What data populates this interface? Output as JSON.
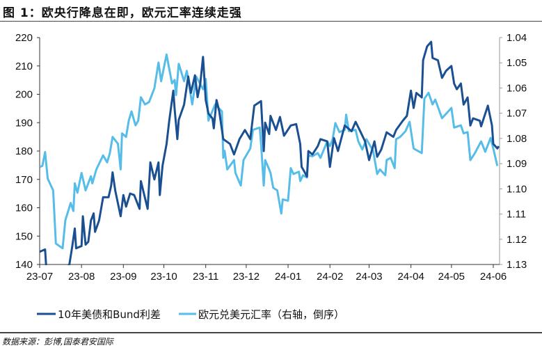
{
  "title": "图 1：欧央行降息在即，欧元汇率连续走强",
  "source": "数据来源：彭博,国泰君安国际",
  "colors": {
    "spread": "#1a4f92",
    "eurusd": "#56bde9"
  },
  "chart_data": {
    "type": "line",
    "title": "",
    "grid": false,
    "legend_position": "bottom",
    "x_ticks": [
      "23-07",
      "23-08",
      "23-09",
      "23-10",
      "23-11",
      "23-12",
      "24-01",
      "24-02",
      "24-03",
      "24-04",
      "24-05",
      "24-06"
    ],
    "y_left": {
      "ticks": [
        "220",
        "210",
        "200",
        "190",
        "180",
        "170",
        "160",
        "150",
        "140"
      ],
      "range": [
        140,
        220
      ]
    },
    "y_right": {
      "ticks": [
        "1.04",
        "1.05",
        "1.06",
        "1.07",
        "1.08",
        "1.09",
        "1.10",
        "1.11",
        "1.12",
        "1.13"
      ],
      "range": [
        1.04,
        1.13
      ],
      "inverted": true
    },
    "series": [
      {
        "name": "10年美债和Bund利差",
        "axis": "left",
        "points": [
          [
            "2023-07-01",
            144.5
          ],
          [
            "2023-07-05",
            145.3
          ],
          [
            "2023-07-06",
            138
          ],
          [
            "2023-07-15",
            135
          ],
          [
            "2023-07-23",
            140
          ],
          [
            "2023-07-25",
            146
          ],
          [
            "2023-07-27",
            152.7
          ],
          [
            "2023-07-28",
            145.7
          ],
          [
            "2023-08-01",
            146.5
          ],
          [
            "2023-08-02",
            157
          ],
          [
            "2023-08-04",
            147
          ],
          [
            "2023-08-06",
            148
          ],
          [
            "2023-08-08",
            155.5
          ],
          [
            "2023-08-10",
            158
          ],
          [
            "2023-08-11",
            151.5
          ],
          [
            "2023-08-14",
            155.5
          ],
          [
            "2023-08-17",
            163.7
          ],
          [
            "2023-08-21",
            163.7
          ],
          [
            "2023-08-23",
            167.8
          ],
          [
            "2023-08-24",
            172.5
          ],
          [
            "2023-08-26",
            166
          ],
          [
            "2023-08-30",
            157
          ],
          [
            "2023-09-01",
            164.5
          ],
          [
            "2023-09-03",
            160.4
          ],
          [
            "2023-09-06",
            165
          ],
          [
            "2023-09-09",
            164.5
          ],
          [
            "2023-09-13",
            159.6
          ],
          [
            "2023-09-14",
            169.4
          ],
          [
            "2023-09-19",
            159.6
          ],
          [
            "2023-09-21",
            176
          ],
          [
            "2023-09-24",
            170
          ],
          [
            "2023-09-27",
            176
          ],
          [
            "2023-09-28",
            164.5
          ],
          [
            "2023-09-30",
            174.8
          ],
          [
            "2023-10-03",
            182.5
          ],
          [
            "2023-10-05",
            190.8
          ],
          [
            "2023-10-08",
            201.3
          ],
          [
            "2023-10-09",
            194.8
          ],
          [
            "2023-10-11",
            184.2
          ],
          [
            "2023-10-12",
            191
          ],
          [
            "2023-10-16",
            196.4
          ],
          [
            "2023-10-19",
            206.3
          ],
          [
            "2023-10-21",
            200.5
          ],
          [
            "2023-10-24",
            206.7
          ],
          [
            "2023-10-26",
            199
          ],
          [
            "2023-10-28",
            203.8
          ],
          [
            "2023-10-30",
            213.2
          ],
          [
            "2023-11-01",
            198
          ],
          [
            "2023-11-03",
            193.2
          ],
          [
            "2023-11-06",
            191.5
          ],
          [
            "2023-11-07",
            188
          ],
          [
            "2023-11-09",
            198
          ],
          [
            "2023-11-11",
            194
          ],
          [
            "2023-11-14",
            184.2
          ],
          [
            "2023-11-19",
            182.5
          ],
          [
            "2023-11-22",
            178.8
          ],
          [
            "2023-11-26",
            184.2
          ],
          [
            "2023-11-30",
            187.4
          ],
          [
            "2023-12-04",
            184.2
          ],
          [
            "2023-12-07",
            196
          ],
          [
            "2023-12-12",
            197.6
          ],
          [
            "2023-12-14",
            180
          ],
          [
            "2023-12-15",
            190
          ],
          [
            "2023-12-18",
            186
          ],
          [
            "2023-12-19",
            192.4
          ],
          [
            "2023-12-23",
            187.4
          ],
          [
            "2023-12-26",
            192
          ],
          [
            "2023-12-29",
            185.4
          ],
          [
            "2024-01-03",
            189
          ],
          [
            "2024-01-07",
            189.5
          ],
          [
            "2024-01-10",
            182.5
          ],
          [
            "2024-01-11",
            174.4
          ],
          [
            "2024-01-13",
            172.8
          ],
          [
            "2024-01-15",
            171
          ],
          [
            "2024-01-16",
            180
          ],
          [
            "2024-01-19",
            178.8
          ],
          [
            "2024-01-23",
            181.7
          ],
          [
            "2024-01-25",
            184.2
          ],
          [
            "2024-01-30",
            183.4
          ],
          [
            "2024-02-01",
            174.4
          ],
          [
            "2024-02-04",
            184.6
          ],
          [
            "2024-02-07",
            180
          ],
          [
            "2024-02-12",
            189
          ],
          [
            "2024-02-17",
            187
          ],
          [
            "2024-02-20",
            190.3
          ],
          [
            "2024-02-23",
            187.4
          ],
          [
            "2024-02-27",
            183.4
          ],
          [
            "2024-03-01",
            176.8
          ],
          [
            "2024-03-05",
            183.4
          ],
          [
            "2024-03-07",
            178
          ],
          [
            "2024-03-10",
            180.5
          ],
          [
            "2024-03-14",
            186.6
          ],
          [
            "2024-03-19",
            185
          ],
          [
            "2024-03-21",
            187.4
          ],
          [
            "2024-03-26",
            190.7
          ],
          [
            "2024-03-29",
            192.4
          ],
          [
            "2024-04-01",
            201.3
          ],
          [
            "2024-04-03",
            195.2
          ],
          [
            "2024-04-05",
            200.5
          ],
          [
            "2024-04-09",
            198.9
          ],
          [
            "2024-04-10",
            212
          ],
          [
            "2024-04-13",
            216.9
          ],
          [
            "2024-04-16",
            218.5
          ],
          [
            "2024-04-17",
            212.8
          ],
          [
            "2024-04-21",
            212
          ],
          [
            "2024-04-24",
            205.8
          ],
          [
            "2024-04-27",
            208.3
          ],
          [
            "2024-05-01",
            210
          ],
          [
            "2024-05-03",
            203.8
          ],
          [
            "2024-05-05",
            201.8
          ],
          [
            "2024-05-08",
            203.8
          ],
          [
            "2024-05-10",
            196.4
          ],
          [
            "2024-05-13",
            198.9
          ],
          [
            "2024-05-15",
            189
          ],
          [
            "2024-05-17",
            191.5
          ],
          [
            "2024-05-22",
            190.7
          ],
          [
            "2024-05-23",
            188.7
          ],
          [
            "2024-05-28",
            196
          ],
          [
            "2024-05-31",
            189
          ],
          [
            "2024-06-01",
            182.5
          ],
          [
            "2024-06-04",
            180.9
          ],
          [
            "2024-06-05",
            181.7
          ]
        ]
      },
      {
        "name": "欧元兑美元汇率（右轴，倒序）",
        "axis": "right",
        "points": [
          [
            "2023-07-01",
            1.0913
          ],
          [
            "2023-07-03",
            1.0909
          ],
          [
            "2023-07-05",
            1.0854
          ],
          [
            "2023-07-07",
            1.096
          ],
          [
            "2023-07-11",
            1.1006
          ],
          [
            "2023-07-13",
            1.1217
          ],
          [
            "2023-07-18",
            1.1236
          ],
          [
            "2023-07-20",
            1.1125
          ],
          [
            "2023-07-24",
            1.1056
          ],
          [
            "2023-07-26",
            1.1088
          ],
          [
            "2023-07-27",
            1.0978
          ],
          [
            "2023-07-29",
            1.1015
          ],
          [
            "2023-08-01",
            1.0937
          ],
          [
            "2023-08-04",
            1.1006
          ],
          [
            "2023-08-08",
            1.095
          ],
          [
            "2023-08-09",
            1.0978
          ],
          [
            "2023-08-12",
            1.0923
          ],
          [
            "2023-08-17",
            1.0867
          ],
          [
            "2023-08-20",
            1.0895
          ],
          [
            "2023-08-22",
            1.0858
          ],
          [
            "2023-08-24",
            1.0794
          ],
          [
            "2023-08-28",
            1.0821
          ],
          [
            "2023-08-30",
            1.0923
          ],
          [
            "2023-08-31",
            1.078
          ],
          [
            "2023-09-03",
            1.0794
          ],
          [
            "2023-09-05",
            1.0729
          ],
          [
            "2023-09-07",
            1.0693
          ],
          [
            "2023-09-10",
            1.0748
          ],
          [
            "2023-09-12",
            1.0729
          ],
          [
            "2023-09-14",
            1.0637
          ],
          [
            "2023-09-17",
            1.0665
          ],
          [
            "2023-09-20",
            1.0656
          ],
          [
            "2023-09-24",
            1.0601
          ],
          [
            "2023-09-27",
            1.0499
          ],
          [
            "2023-09-29",
            1.0573
          ],
          [
            "2023-10-03",
            1.0467
          ],
          [
            "2023-10-07",
            1.0582
          ],
          [
            "2023-10-09",
            1.0568
          ],
          [
            "2023-10-10",
            1.0628
          ],
          [
            "2023-10-12",
            1.0504
          ],
          [
            "2023-10-16",
            1.0573
          ],
          [
            "2023-10-18",
            1.0532
          ],
          [
            "2023-10-22",
            1.0665
          ],
          [
            "2023-10-25",
            1.0555
          ],
          [
            "2023-10-30",
            1.0605
          ],
          [
            "2023-11-01",
            1.0564
          ],
          [
            "2023-11-03",
            1.0729
          ],
          [
            "2023-11-08",
            1.0665
          ],
          [
            "2023-11-13",
            1.0693
          ],
          [
            "2023-11-14",
            1.0877
          ],
          [
            "2023-11-15",
            1.0849
          ],
          [
            "2023-11-17",
            1.0923
          ],
          [
            "2023-11-22",
            1.0886
          ],
          [
            "2023-11-23",
            1.0937
          ],
          [
            "2023-11-27",
            1.0987
          ],
          [
            "2023-11-29",
            1.0886
          ],
          [
            "2023-12-04",
            1.084
          ],
          [
            "2023-12-06",
            1.0766
          ],
          [
            "2023-12-11",
            1.0757
          ],
          [
            "2023-12-12",
            1.0821
          ],
          [
            "2023-12-14",
            1.0987
          ],
          [
            "2023-12-15",
            1.0886
          ],
          [
            "2023-12-18",
            1.0923
          ],
          [
            "2023-12-19",
            1.0937
          ],
          [
            "2023-12-21",
            1.0996
          ],
          [
            "2023-12-24",
            1.1006
          ],
          [
            "2023-12-27",
            1.1098
          ],
          [
            "2023-12-28",
            1.1042
          ],
          [
            "2024-01-01",
            1.1047
          ],
          [
            "2024-01-03",
            1.0918
          ],
          [
            "2024-01-05",
            1.0941
          ],
          [
            "2024-01-09",
            1.0932
          ],
          [
            "2024-01-10",
            1.0969
          ],
          [
            "2024-01-12",
            1.0946
          ],
          [
            "2024-01-15",
            1.0955
          ],
          [
            "2024-01-16",
            1.0867
          ],
          [
            "2024-01-19",
            1.0871
          ],
          [
            "2024-01-23",
            1.0858
          ],
          [
            "2024-01-25",
            1.0877
          ],
          [
            "2024-01-30",
            1.0812
          ],
          [
            "2024-02-01",
            1.083
          ],
          [
            "2024-02-03",
            1.0803
          ],
          [
            "2024-02-05",
            1.0739
          ],
          [
            "2024-02-08",
            1.0775
          ],
          [
            "2024-02-12",
            1.0766
          ],
          [
            "2024-02-13",
            1.0706
          ],
          [
            "2024-02-15",
            1.0771
          ],
          [
            "2024-02-20",
            1.0766
          ],
          [
            "2024-02-22",
            1.0812
          ],
          [
            "2024-02-25",
            1.0844
          ],
          [
            "2024-02-28",
            1.0803
          ],
          [
            "2024-03-04",
            1.0849
          ],
          [
            "2024-03-07",
            1.0941
          ],
          [
            "2024-03-09",
            1.0923
          ],
          [
            "2024-03-13",
            1.0946
          ],
          [
            "2024-03-14",
            1.0886
          ],
          [
            "2024-03-17",
            1.0877
          ],
          [
            "2024-03-20",
            1.0918
          ],
          [
            "2024-03-21",
            1.0803
          ],
          [
            "2024-03-24",
            1.0794
          ],
          [
            "2024-03-28",
            1.0771
          ],
          [
            "2024-03-31",
            1.0734
          ],
          [
            "2024-04-03",
            1.084
          ],
          [
            "2024-04-09",
            1.0858
          ],
          [
            "2024-04-11",
            1.0642
          ],
          [
            "2024-04-14",
            1.0619
          ],
          [
            "2024-04-17",
            1.0665
          ],
          [
            "2024-04-19",
            1.0646
          ],
          [
            "2024-04-24",
            1.072
          ],
          [
            "2024-05-01",
            1.0679
          ],
          [
            "2024-05-03",
            1.0757
          ],
          [
            "2024-05-08",
            1.0748
          ],
          [
            "2024-05-10",
            1.078
          ],
          [
            "2024-05-13",
            1.0775
          ],
          [
            "2024-05-15",
            1.0886
          ],
          [
            "2024-05-18",
            1.0862
          ],
          [
            "2024-05-23",
            1.0812
          ],
          [
            "2024-05-26",
            1.0853
          ],
          [
            "2024-05-30",
            1.0798
          ],
          [
            "2024-06-01",
            1.084
          ],
          [
            "2024-06-04",
            1.0909
          ]
        ]
      }
    ]
  }
}
